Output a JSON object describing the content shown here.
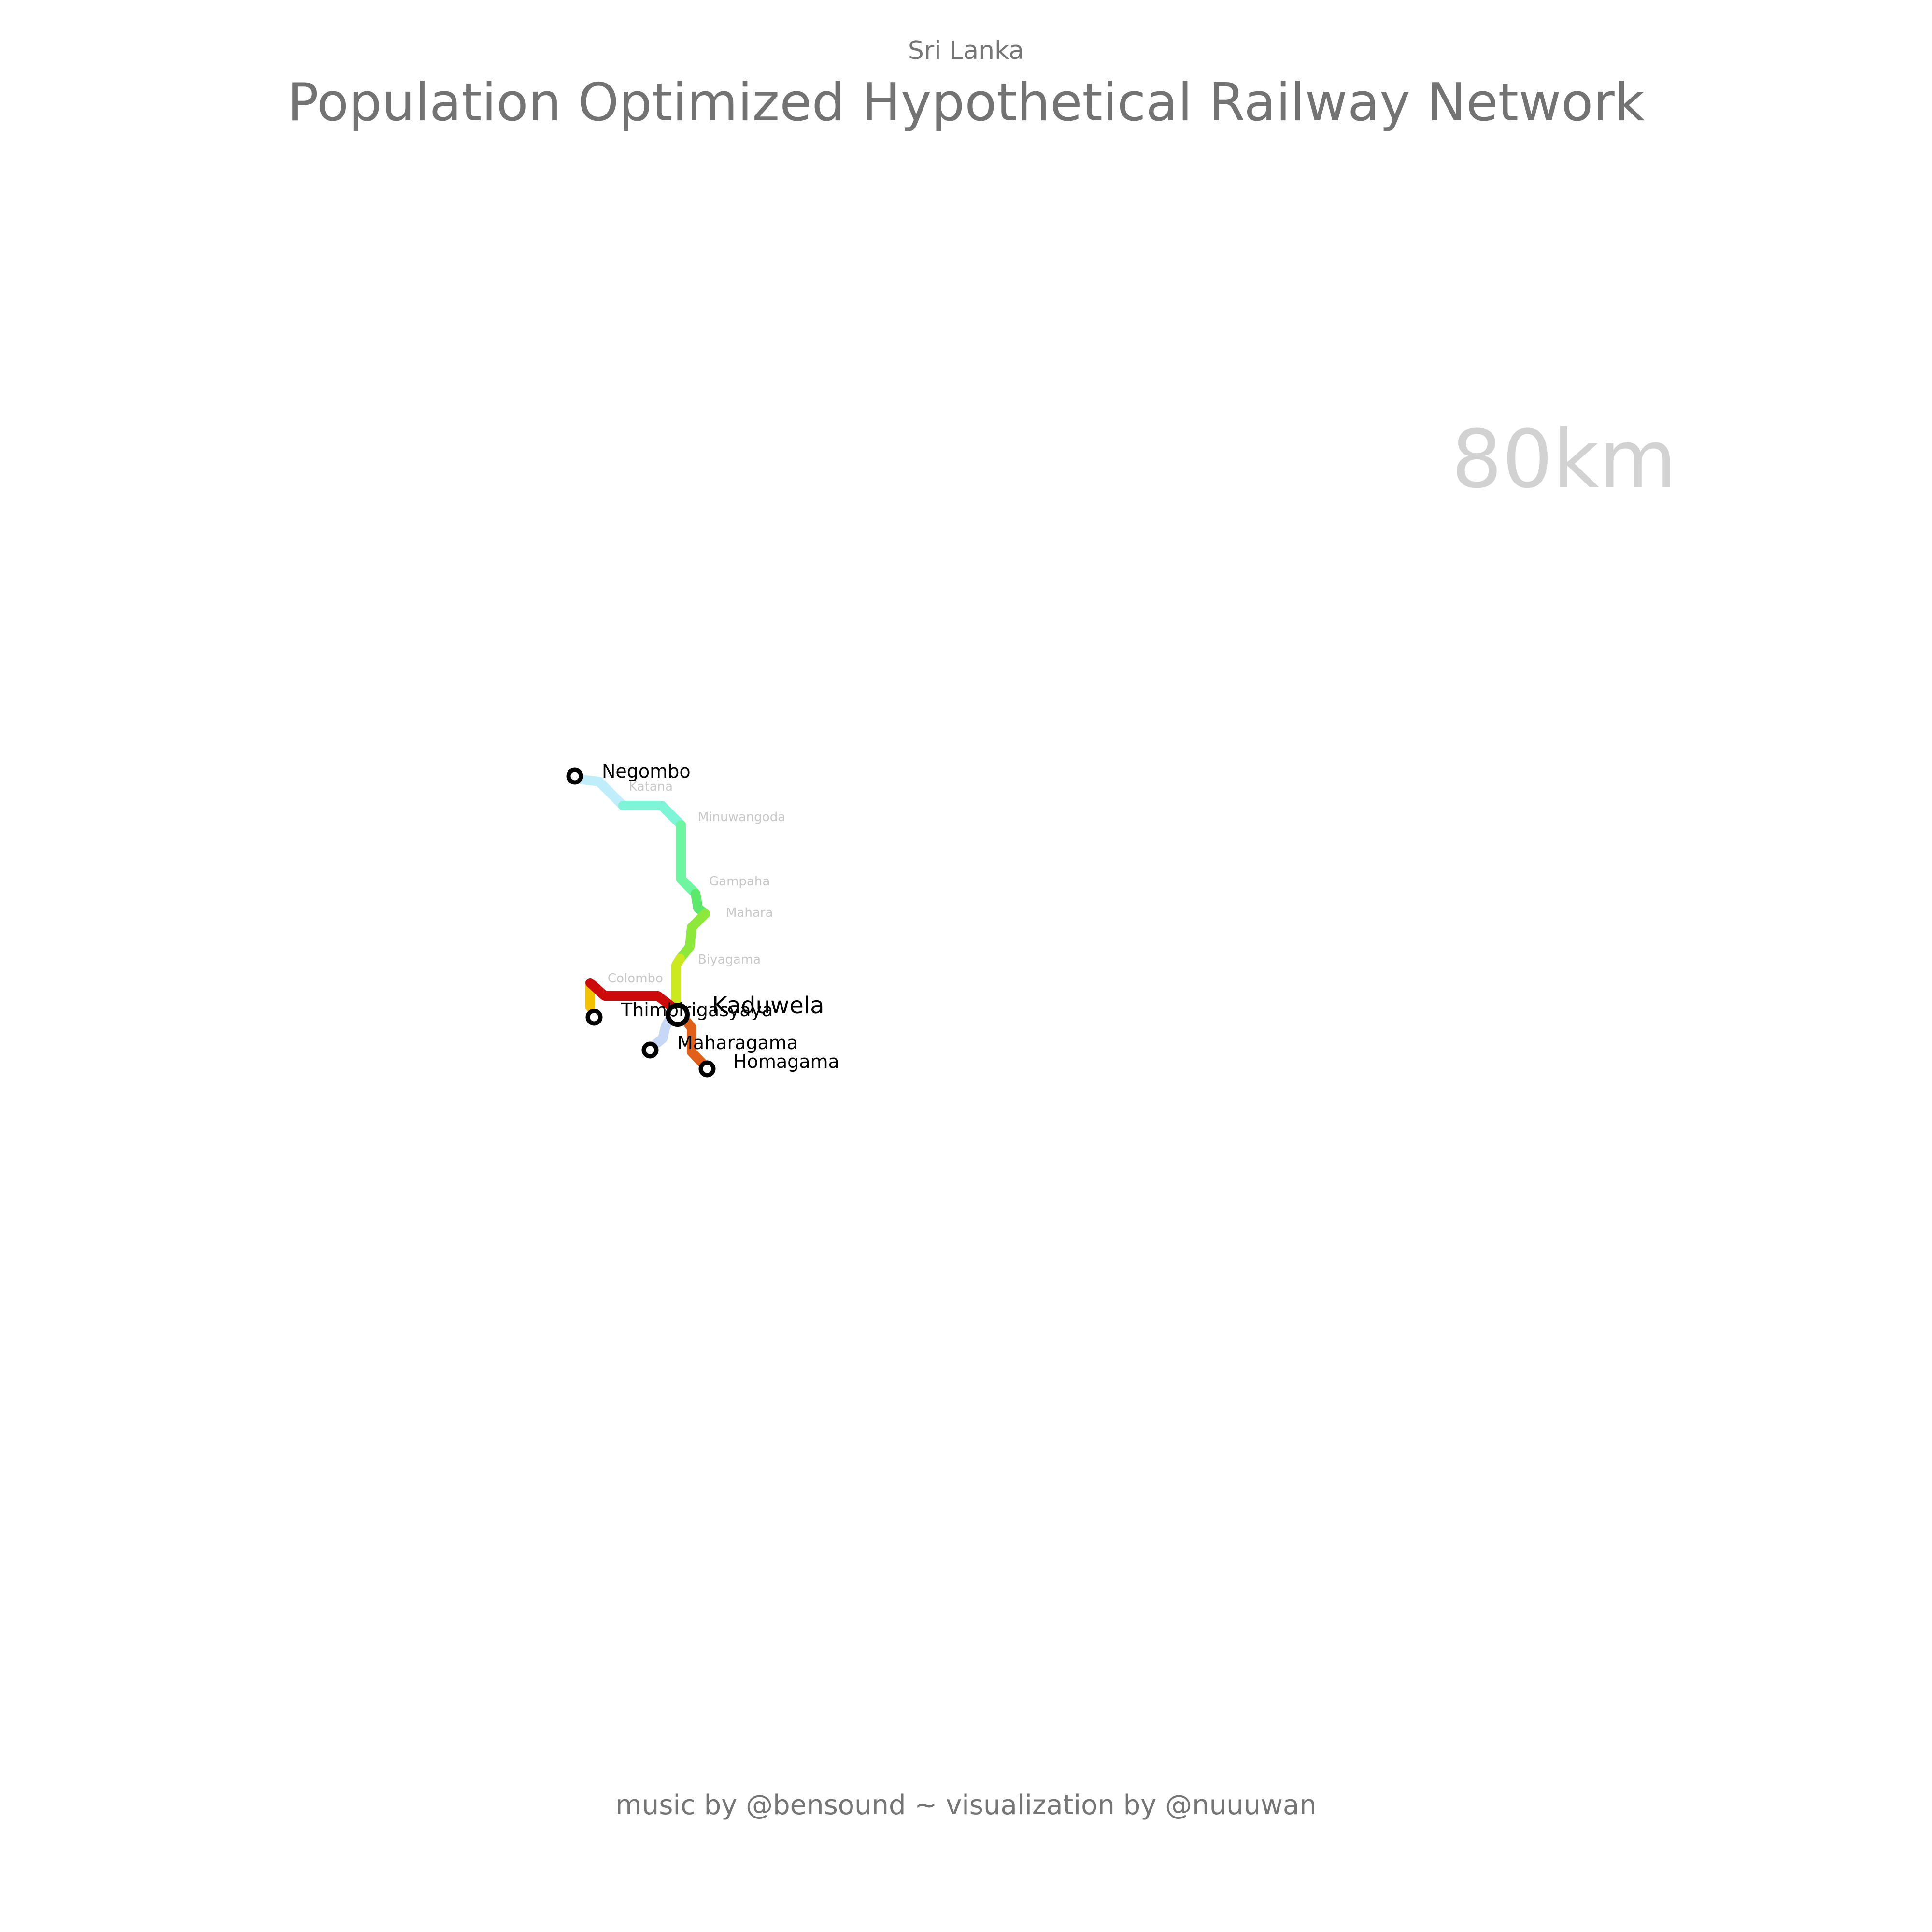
{
  "header": {
    "subtitle": "Sri Lanka",
    "title": "Population Optimized Hypothetical Railway Network"
  },
  "distance_readout": "80km",
  "footer": "music by @bensound ~ visualization by @nuuuwan",
  "colors": {
    "negombo_katana": "#bfeefa",
    "katana_minuwangoda": "#7ff5d8",
    "minuwangoda_gampaha": "#6ef5a0",
    "gampaha_mahara": "#5ce86a",
    "mahara_biyagama": "#8ce83a",
    "biyagama_kaduwela": "#cce81e",
    "colombo_kaduwela": "#cc0a0a",
    "colombo_thimbirigasyaya": "#f2c200",
    "kaduwela_homagama": "#e0601a",
    "kaduwela_maharagama": "#c6d8f5",
    "station_stroke": "#000000"
  },
  "stations": {
    "terminals": [
      {
        "id": "negombo",
        "name": "Negombo"
      },
      {
        "id": "thimbirigasyaya",
        "name": "Thimbirigasyaya"
      },
      {
        "id": "maharagama",
        "name": "Maharagama"
      },
      {
        "id": "homagama",
        "name": "Homagama"
      }
    ],
    "hub": {
      "id": "kaduwela",
      "name": "Kaduwela"
    },
    "intermediate": [
      {
        "id": "katana",
        "name": "Katana"
      },
      {
        "id": "minuwangoda",
        "name": "Minuwangoda"
      },
      {
        "id": "gampaha",
        "name": "Gampaha"
      },
      {
        "id": "mahara",
        "name": "Mahara"
      },
      {
        "id": "biyagama",
        "name": "Biyagama"
      },
      {
        "id": "colombo",
        "name": "Colombo"
      }
    ]
  }
}
